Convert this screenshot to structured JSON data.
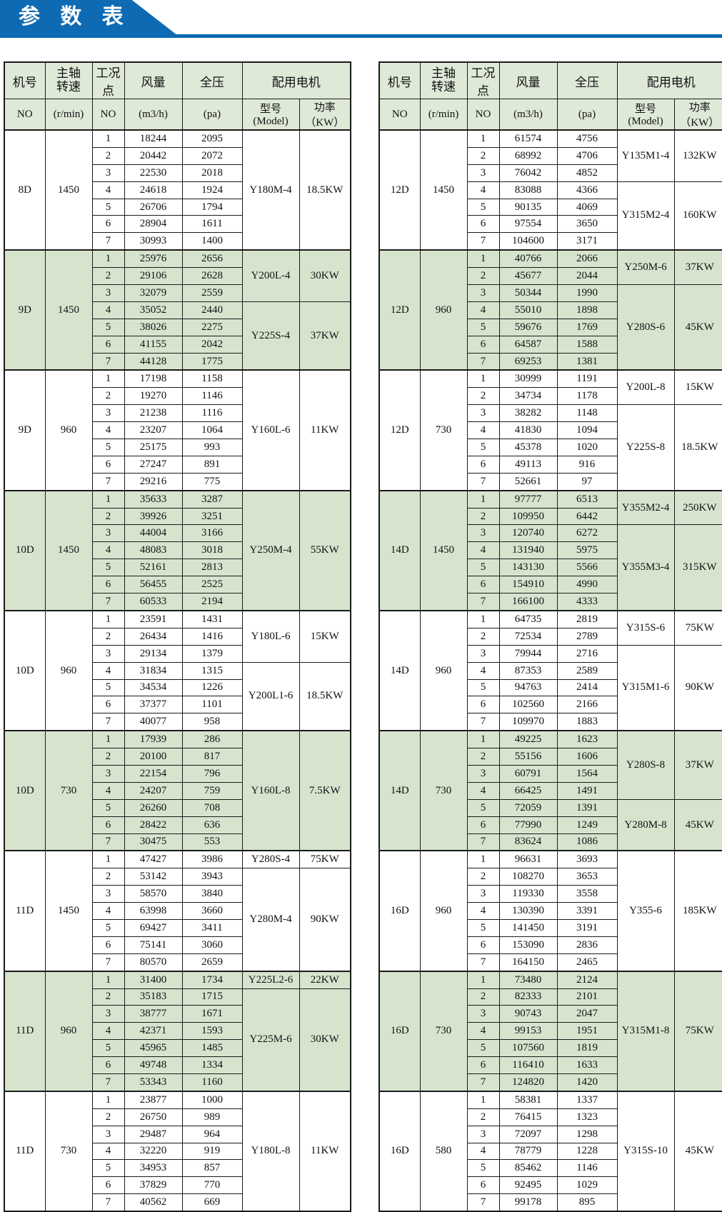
{
  "title": "参 数 表",
  "colors": {
    "banner_blue": "#0e6ab3",
    "row_green": "#d6e4ce",
    "header_green": "#dfe9d8",
    "border": "#1a1a1a"
  },
  "header": {
    "machine": {
      "main": "机号",
      "sub": "NO"
    },
    "speed": {
      "main": "主轴\n转速",
      "sub": "(r/min)"
    },
    "point": {
      "main": "工况点",
      "sub": "NO"
    },
    "flow": {
      "main": "风量",
      "sub": "(m3/h)"
    },
    "pressure": {
      "main": "全压",
      "sub": "(pa)"
    },
    "motor": {
      "main": "配用电机",
      "sub_model": "型号(Model)",
      "sub_power": "功率（KW）"
    }
  },
  "tables": {
    "left": {
      "sections": [
        {
          "machine": "8D",
          "speed": "1450",
          "shaded": false,
          "rows": [
            [
              "1",
              "18244",
              "2095"
            ],
            [
              "2",
              "20442",
              "2072"
            ],
            [
              "3",
              "22530",
              "2018"
            ],
            [
              "4",
              "24618",
              "1924"
            ],
            [
              "5",
              "26706",
              "1794"
            ],
            [
              "6",
              "28904",
              "1611"
            ],
            [
              "7",
              "30993",
              "1400"
            ]
          ],
          "motors": [
            {
              "model": "Y180M-4",
              "power": "18.5KW",
              "from": 1,
              "to": 7
            }
          ]
        },
        {
          "machine": "9D",
          "speed": "1450",
          "shaded": true,
          "rows": [
            [
              "1",
              "25976",
              "2656"
            ],
            [
              "2",
              "29106",
              "2628"
            ],
            [
              "3",
              "32079",
              "2559"
            ],
            [
              "4",
              "35052",
              "2440"
            ],
            [
              "5",
              "38026",
              "2275"
            ],
            [
              "6",
              "41155",
              "2042"
            ],
            [
              "7",
              "44128",
              "1775"
            ]
          ],
          "motors": [
            {
              "model": "Y200L-4",
              "power": "30KW",
              "from": 1,
              "to": 3
            },
            {
              "model": "Y225S-4",
              "power": "37KW",
              "from": 4,
              "to": 7
            }
          ]
        },
        {
          "machine": "9D",
          "speed": "960",
          "shaded": false,
          "rows": [
            [
              "1",
              "17198",
              "1158"
            ],
            [
              "2",
              "19270",
              "1146"
            ],
            [
              "3",
              "21238",
              "1116"
            ],
            [
              "4",
              "23207",
              "1064"
            ],
            [
              "5",
              "25175",
              "993"
            ],
            [
              "6",
              "27247",
              "891"
            ],
            [
              "7",
              "29216",
              "775"
            ]
          ],
          "motors": [
            {
              "model": "Y160L-6",
              "power": "11KW",
              "from": 1,
              "to": 7
            }
          ]
        },
        {
          "machine": "10D",
          "speed": "1450",
          "shaded": true,
          "rows": [
            [
              "1",
              "35633",
              "3287"
            ],
            [
              "2",
              "39926",
              "3251"
            ],
            [
              "3",
              "44004",
              "3166"
            ],
            [
              "4",
              "48083",
              "3018"
            ],
            [
              "5",
              "52161",
              "2813"
            ],
            [
              "6",
              "56455",
              "2525"
            ],
            [
              "7",
              "60533",
              "2194"
            ]
          ],
          "motors": [
            {
              "model": "Y250M-4",
              "power": "55KW",
              "from": 1,
              "to": 7
            }
          ]
        },
        {
          "machine": "10D",
          "speed": "960",
          "shaded": false,
          "rows": [
            [
              "1",
              "23591",
              "1431"
            ],
            [
              "2",
              "26434",
              "1416"
            ],
            [
              "3",
              "29134",
              "1379"
            ],
            [
              "4",
              "31834",
              "1315"
            ],
            [
              "5",
              "34534",
              "1226"
            ],
            [
              "6",
              "37377",
              "1101"
            ],
            [
              "7",
              "40077",
              "958"
            ]
          ],
          "motors": [
            {
              "model": "Y180L-6",
              "power": "15KW",
              "from": 1,
              "to": 3
            },
            {
              "model": "Y200L1-6",
              "power": "18.5KW",
              "from": 4,
              "to": 7
            }
          ]
        },
        {
          "machine": "10D",
          "speed": "730",
          "shaded": true,
          "rows": [
            [
              "1",
              "17939",
              "286"
            ],
            [
              "2",
              "20100",
              "817"
            ],
            [
              "3",
              "22154",
              "796"
            ],
            [
              "4",
              "24207",
              "759"
            ],
            [
              "5",
              "26260",
              "708"
            ],
            [
              "6",
              "28422",
              "636"
            ],
            [
              "7",
              "30475",
              "553"
            ]
          ],
          "motors": [
            {
              "model": "Y160L-8",
              "power": "7.5KW",
              "from": 1,
              "to": 7
            }
          ]
        },
        {
          "machine": "11D",
          "speed": "1450",
          "shaded": false,
          "rows": [
            [
              "1",
              "47427",
              "3986"
            ],
            [
              "2",
              "53142",
              "3943"
            ],
            [
              "3",
              "58570",
              "3840"
            ],
            [
              "4",
              "63998",
              "3660"
            ],
            [
              "5",
              "69427",
              "3411"
            ],
            [
              "6",
              "75141",
              "3060"
            ],
            [
              "7",
              "80570",
              "2659"
            ]
          ],
          "motors": [
            {
              "model": "Y280S-4",
              "power": "75KW",
              "from": 1,
              "to": 1
            },
            {
              "model": "Y280M-4",
              "power": "90KW",
              "from": 2,
              "to": 7
            }
          ]
        },
        {
          "machine": "11D",
          "speed": "960",
          "shaded": true,
          "rows": [
            [
              "1",
              "31400",
              "1734"
            ],
            [
              "2",
              "35183",
              "1715"
            ],
            [
              "3",
              "38777",
              "1671"
            ],
            [
              "4",
              "42371",
              "1593"
            ],
            [
              "5",
              "45965",
              "1485"
            ],
            [
              "6",
              "49748",
              "1334"
            ],
            [
              "7",
              "53343",
              "1160"
            ]
          ],
          "motors": [
            {
              "model": "Y225L2-6",
              "power": "22KW",
              "from": 1,
              "to": 1
            },
            {
              "model": "Y225M-6",
              "power": "30KW",
              "from": 2,
              "to": 7
            }
          ]
        },
        {
          "machine": "11D",
          "speed": "730",
          "shaded": false,
          "rows": [
            [
              "1",
              "23877",
              "1000"
            ],
            [
              "2",
              "26750",
              "989"
            ],
            [
              "3",
              "29487",
              "964"
            ],
            [
              "4",
              "32220",
              "919"
            ],
            [
              "5",
              "34953",
              "857"
            ],
            [
              "6",
              "37829",
              "770"
            ],
            [
              "7",
              "40562",
              "669"
            ]
          ],
          "motors": [
            {
              "model": "Y180L-8",
              "power": "11KW",
              "from": 1,
              "to": 7
            }
          ]
        }
      ]
    },
    "right": {
      "sections": [
        {
          "machine": "12D",
          "speed": "1450",
          "shaded": false,
          "rows": [
            [
              "1",
              "61574",
              "4756"
            ],
            [
              "2",
              "68992",
              "4706"
            ],
            [
              "3",
              "76042",
              "4852"
            ],
            [
              "4",
              "83088",
              "4366"
            ],
            [
              "5",
              "90135",
              "4069"
            ],
            [
              "6",
              "97554",
              "3650"
            ],
            [
              "7",
              "104600",
              "3171"
            ]
          ],
          "motors": [
            {
              "model": "Y135M1-4",
              "power": "132KW",
              "from": 1,
              "to": 3
            },
            {
              "model": "Y315M2-4",
              "power": "160KW",
              "from": 4,
              "to": 7
            }
          ]
        },
        {
          "machine": "12D",
          "speed": "960",
          "shaded": true,
          "rows": [
            [
              "1",
              "40766",
              "2066"
            ],
            [
              "2",
              "45677",
              "2044"
            ],
            [
              "3",
              "50344",
              "1990"
            ],
            [
              "4",
              "55010",
              "1898"
            ],
            [
              "5",
              "59676",
              "1769"
            ],
            [
              "6",
              "64587",
              "1588"
            ],
            [
              "7",
              "69253",
              "1381"
            ]
          ],
          "motors": [
            {
              "model": "Y250M-6",
              "power": "37KW",
              "from": 1,
              "to": 2
            },
            {
              "model": "Y280S-6",
              "power": "45KW",
              "from": 3,
              "to": 7
            }
          ]
        },
        {
          "machine": "12D",
          "speed": "730",
          "shaded": false,
          "rows": [
            [
              "1",
              "30999",
              "1191"
            ],
            [
              "2",
              "34734",
              "1178"
            ],
            [
              "3",
              "38282",
              "1148"
            ],
            [
              "4",
              "41830",
              "1094"
            ],
            [
              "5",
              "45378",
              "1020"
            ],
            [
              "6",
              "49113",
              "916"
            ],
            [
              "7",
              "52661",
              "97"
            ]
          ],
          "motors": [
            {
              "model": "Y200L-8",
              "power": "15KW",
              "from": 1,
              "to": 2
            },
            {
              "model": "Y225S-8",
              "power": "18.5KW",
              "from": 3,
              "to": 7
            }
          ]
        },
        {
          "machine": "14D",
          "speed": "1450",
          "shaded": true,
          "rows": [
            [
              "1",
              "97777",
              "6513"
            ],
            [
              "2",
              "109950",
              "6442"
            ],
            [
              "3",
              "120740",
              "6272"
            ],
            [
              "4",
              "131940",
              "5975"
            ],
            [
              "5",
              "143130",
              "5566"
            ],
            [
              "6",
              "154910",
              "4990"
            ],
            [
              "7",
              "166100",
              "4333"
            ]
          ],
          "motors": [
            {
              "model": "Y355M2-4",
              "power": "250KW",
              "from": 1,
              "to": 2
            },
            {
              "model": "Y355M3-4",
              "power": "315KW",
              "from": 3,
              "to": 7
            }
          ]
        },
        {
          "machine": "14D",
          "speed": "960",
          "shaded": false,
          "rows": [
            [
              "1",
              "64735",
              "2819"
            ],
            [
              "2",
              "72534",
              "2789"
            ],
            [
              "3",
              "79944",
              "2716"
            ],
            [
              "4",
              "87353",
              "2589"
            ],
            [
              "5",
              "94763",
              "2414"
            ],
            [
              "6",
              "102560",
              "2166"
            ],
            [
              "7",
              "109970",
              "1883"
            ]
          ],
          "motors": [
            {
              "model": "Y315S-6",
              "power": "75KW",
              "from": 1,
              "to": 2
            },
            {
              "model": "Y315M1-6",
              "power": "90KW",
              "from": 3,
              "to": 7
            }
          ]
        },
        {
          "machine": "14D",
          "speed": "730",
          "shaded": true,
          "rows": [
            [
              "1",
              "49225",
              "1623"
            ],
            [
              "2",
              "55156",
              "1606"
            ],
            [
              "3",
              "60791",
              "1564"
            ],
            [
              "4",
              "66425",
              "1491"
            ],
            [
              "5",
              "72059",
              "1391"
            ],
            [
              "6",
              "77990",
              "1249"
            ],
            [
              "7",
              "83624",
              "1086"
            ]
          ],
          "motors": [
            {
              "model": "Y280S-8",
              "power": "37KW",
              "from": 1,
              "to": 4
            },
            {
              "model": "Y280M-8",
              "power": "45KW",
              "from": 5,
              "to": 7
            }
          ]
        },
        {
          "machine": "16D",
          "speed": "960",
          "shaded": false,
          "rows": [
            [
              "1",
              "96631",
              "3693"
            ],
            [
              "2",
              "108270",
              "3653"
            ],
            [
              "3",
              "119330",
              "3558"
            ],
            [
              "4",
              "130390",
              "3391"
            ],
            [
              "5",
              "141450",
              "3191"
            ],
            [
              "6",
              "153090",
              "2836"
            ],
            [
              "7",
              "164150",
              "2465"
            ]
          ],
          "motors": [
            {
              "model": "Y355-6",
              "power": "185KW",
              "from": 1,
              "to": 7
            }
          ]
        },
        {
          "machine": "16D",
          "speed": "730",
          "shaded": true,
          "rows": [
            [
              "1",
              "73480",
              "2124"
            ],
            [
              "2",
              "82333",
              "2101"
            ],
            [
              "3",
              "90743",
              "2047"
            ],
            [
              "4",
              "99153",
              "1951"
            ],
            [
              "5",
              "107560",
              "1819"
            ],
            [
              "6",
              "116410",
              "1633"
            ],
            [
              "7",
              "124820",
              "1420"
            ]
          ],
          "motors": [
            {
              "model": "Y315M1-8",
              "power": "75KW",
              "from": 1,
              "to": 7
            }
          ]
        },
        {
          "machine": "16D",
          "speed": "580",
          "shaded": false,
          "rows": [
            [
              "1",
              "58381",
              "1337"
            ],
            [
              "2",
              "76415",
              "1323"
            ],
            [
              "3",
              "72097",
              "1298"
            ],
            [
              "4",
              "78779",
              "1228"
            ],
            [
              "5",
              "85462",
              "1146"
            ],
            [
              "6",
              "92495",
              "1029"
            ],
            [
              "7",
              "99178",
              "895"
            ]
          ],
          "motors": [
            {
              "model": "Y315S-10",
              "power": "45KW",
              "from": 1,
              "to": 7
            }
          ]
        }
      ]
    }
  }
}
